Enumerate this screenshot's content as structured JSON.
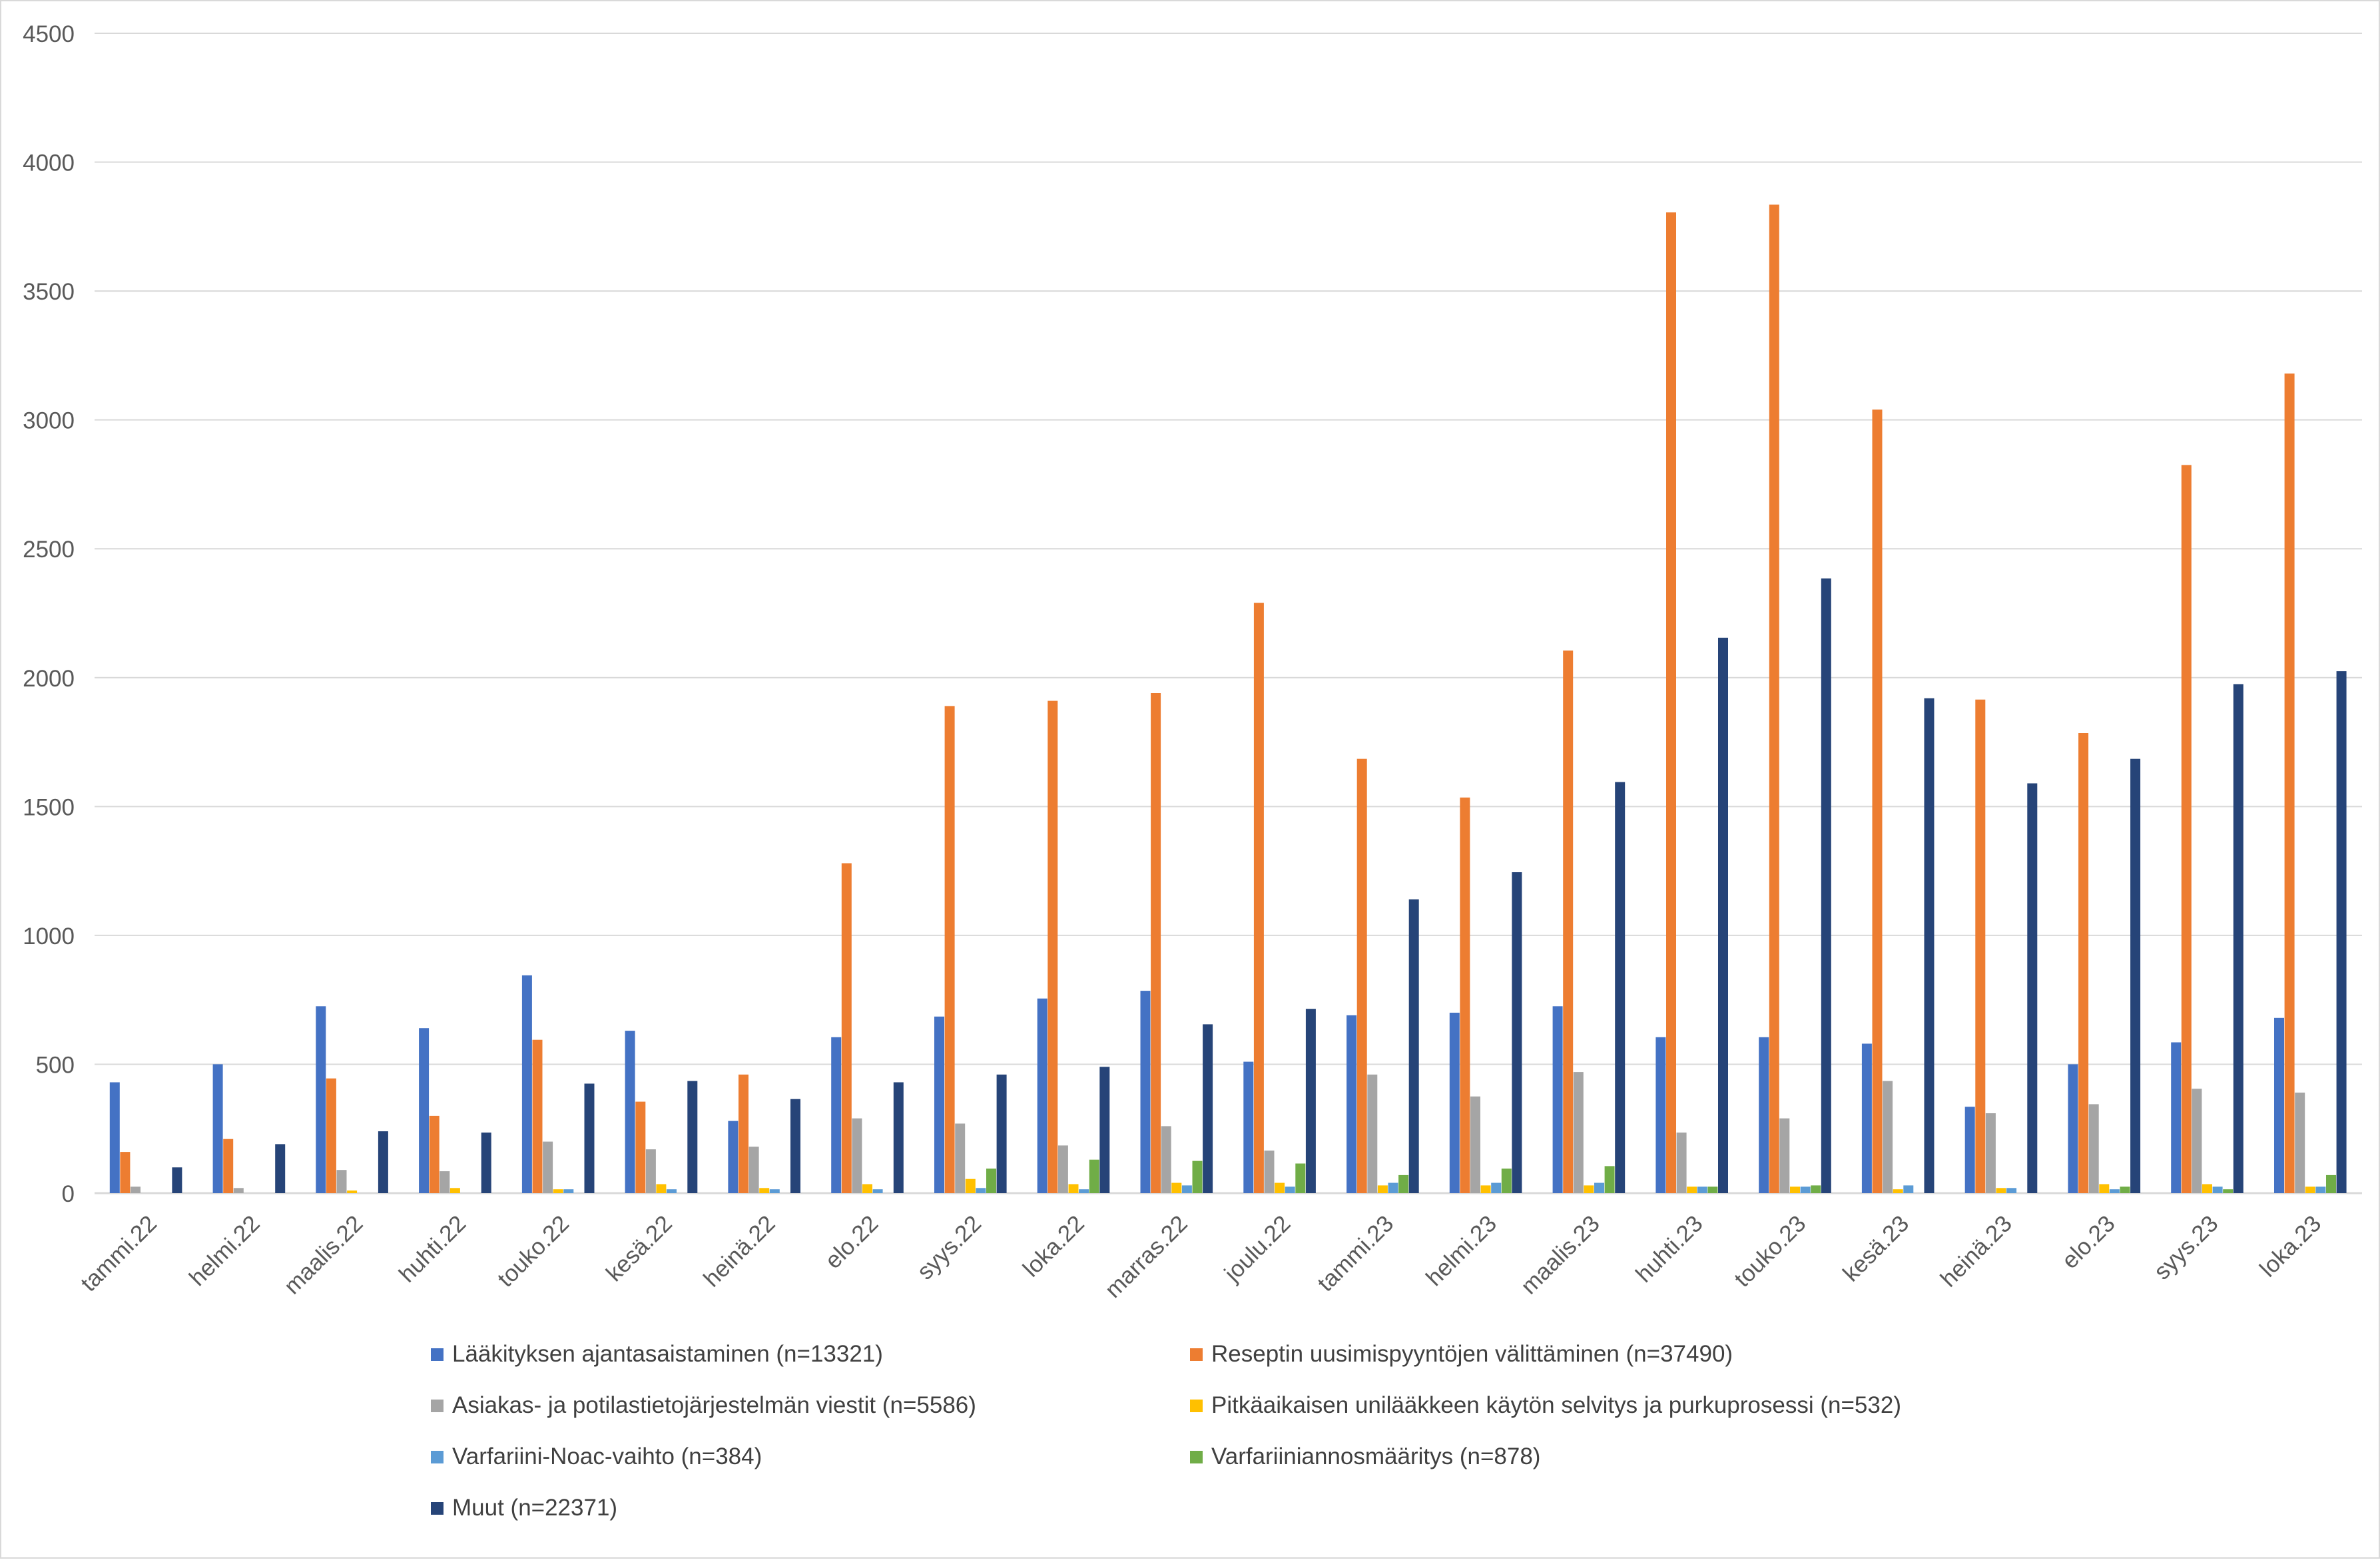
{
  "chart_data": {
    "type": "bar",
    "title": "",
    "xlabel": "",
    "ylabel": "",
    "ylim": [
      0,
      4500
    ],
    "yticks": [
      0,
      500,
      1000,
      1500,
      2000,
      2500,
      3000,
      3500,
      4000,
      4500
    ],
    "grid": true,
    "legend_position": "bottom",
    "categories": [
      "tammi.22",
      "helmi.22",
      "maalis.22",
      "huhti.22",
      "touko.22",
      "kesä.22",
      "heinä.22",
      "elo.22",
      "syys.22",
      "loka.22",
      "marras.22",
      "joulu.22",
      "tammi.23",
      "helmi.23",
      "maalis.23",
      "huhti.23",
      "touko.23",
      "kesä.23",
      "heinä.23",
      "elo.23",
      "syys.23",
      "loka.23"
    ],
    "series": [
      {
        "name": "Lääkityksen ajantasaistaminen (n=13321)",
        "color": "#4472c4",
        "values": [
          430,
          500,
          725,
          640,
          845,
          630,
          280,
          605,
          685,
          755,
          785,
          510,
          690,
          700,
          725,
          605,
          605,
          580,
          335,
          500,
          585,
          680
        ]
      },
      {
        "name": "Reseptin uusimispyyntöjen välittäminen (n=37490)",
        "color": "#ed7d31",
        "values": [
          160,
          210,
          445,
          300,
          595,
          355,
          460,
          1280,
          1890,
          1910,
          1940,
          2290,
          1685,
          1535,
          2105,
          3805,
          3835,
          3040,
          1915,
          1785,
          2825,
          3180
        ]
      },
      {
        "name": "Asiakas- ja potilastietojärjestelmän viestit (n=5586)",
        "color": "#a5a5a5",
        "values": [
          25,
          20,
          90,
          85,
          200,
          170,
          180,
          290,
          270,
          185,
          260,
          165,
          460,
          375,
          470,
          235,
          290,
          435,
          310,
          345,
          405,
          390
        ]
      },
      {
        "name": "Pitkäaikaisen unilääkkeen käytön selvitys ja purkuprosessi (n=532)",
        "color": "#ffc000",
        "values": [
          0,
          0,
          10,
          20,
          15,
          35,
          20,
          35,
          55,
          35,
          40,
          40,
          30,
          30,
          30,
          25,
          25,
          15,
          20,
          35,
          35,
          25
        ]
      },
      {
        "name": "Varfariini-Noac-vaihto (n=384)",
        "color": "#5b9bd5",
        "values": [
          0,
          0,
          0,
          0,
          15,
          15,
          15,
          15,
          20,
          15,
          30,
          25,
          40,
          40,
          40,
          25,
          25,
          30,
          20,
          15,
          25,
          25
        ]
      },
      {
        "name": "Varfariiniannosmääritys (n=878)",
        "color": "#70ad47",
        "values": [
          0,
          0,
          0,
          0,
          0,
          0,
          0,
          0,
          95,
          130,
          125,
          115,
          70,
          95,
          105,
          25,
          30,
          0,
          0,
          25,
          15,
          70
        ]
      },
      {
        "name": "Muut (n=22371)",
        "color": "#264478",
        "values": [
          100,
          190,
          240,
          235,
          425,
          435,
          365,
          430,
          460,
          490,
          655,
          715,
          1140,
          1245,
          1595,
          2155,
          2385,
          1920,
          1590,
          1685,
          1975,
          2025
        ]
      }
    ]
  }
}
